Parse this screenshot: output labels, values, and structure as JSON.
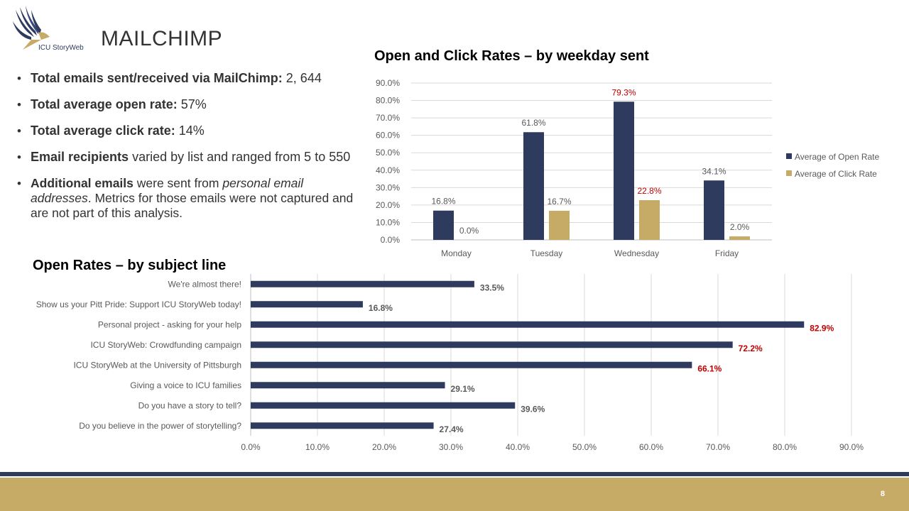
{
  "header": {
    "logo_text": "ICU StoryWeb",
    "title": "MAILCHIMP"
  },
  "bullets": [
    {
      "bold": "Total emails sent/received via MailChimp:",
      "text": " 2, 644"
    },
    {
      "bold": "Total average open rate:",
      "text": " 57%"
    },
    {
      "bold": "Total average click rate:",
      "text": " 14%"
    },
    {
      "bold": "Email recipients",
      "text": " varied by list and ranged from 5 to 550"
    }
  ],
  "bullet_last": {
    "bold": "Additional emails",
    "mid": " were sent from ",
    "italic": "personal email addresses",
    "end": ". Metrics for those emails were not captured and are not part of this analysis."
  },
  "colors": {
    "navy": "#2e3a5e",
    "gold": "#c6ab67",
    "highlight": "#c00000",
    "grid": "#d9d9d9",
    "axis_text": "#595959"
  },
  "chart_data": [
    {
      "type": "bar",
      "title": "Open and Click Rates – by weekday sent",
      "categories": [
        "Monday",
        "Tuesday",
        "Wednesday",
        "Friday"
      ],
      "series": [
        {
          "name": "Average of Open Rate",
          "values": [
            16.8,
            61.8,
            79.3,
            34.1
          ],
          "color": "#2e3a5e"
        },
        {
          "name": "Average of Click Rate",
          "values": [
            0.0,
            16.7,
            22.8,
            2.0
          ],
          "color": "#c6ab67"
        }
      ],
      "highlighted_values": [
        "79.3%",
        "22.8%"
      ],
      "ylim": [
        0,
        90
      ],
      "yticks": [
        "0.0%",
        "10.0%",
        "20.0%",
        "30.0%",
        "40.0%",
        "50.0%",
        "60.0%",
        "70.0%",
        "80.0%",
        "90.0%"
      ],
      "grid": true,
      "legend": "right"
    },
    {
      "type": "bar",
      "orientation": "horizontal",
      "title": "Open Rates – by subject line",
      "categories": [
        "We're almost there!",
        "Show us your Pitt Pride: Support ICU StoryWeb today!",
        "Personal project - asking for your help",
        "ICU StoryWeb: Crowdfunding campaign",
        "ICU StoryWeb at the University of Pittsburgh",
        "Giving a voice to ICU families",
        "Do you have a story to tell?",
        "Do you believe in the power of storytelling?"
      ],
      "values": [
        33.5,
        16.8,
        82.9,
        72.2,
        66.1,
        29.1,
        39.6,
        27.4
      ],
      "highlighted_values": [
        "82.9%",
        "72.2%",
        "66.1%"
      ],
      "xlim": [
        0,
        90
      ],
      "xticks": [
        "0.0%",
        "10.0%",
        "20.0%",
        "30.0%",
        "40.0%",
        "50.0%",
        "60.0%",
        "70.0%",
        "80.0%",
        "90.0%"
      ],
      "grid": true
    }
  ],
  "footer": {
    "page_number": "8"
  }
}
